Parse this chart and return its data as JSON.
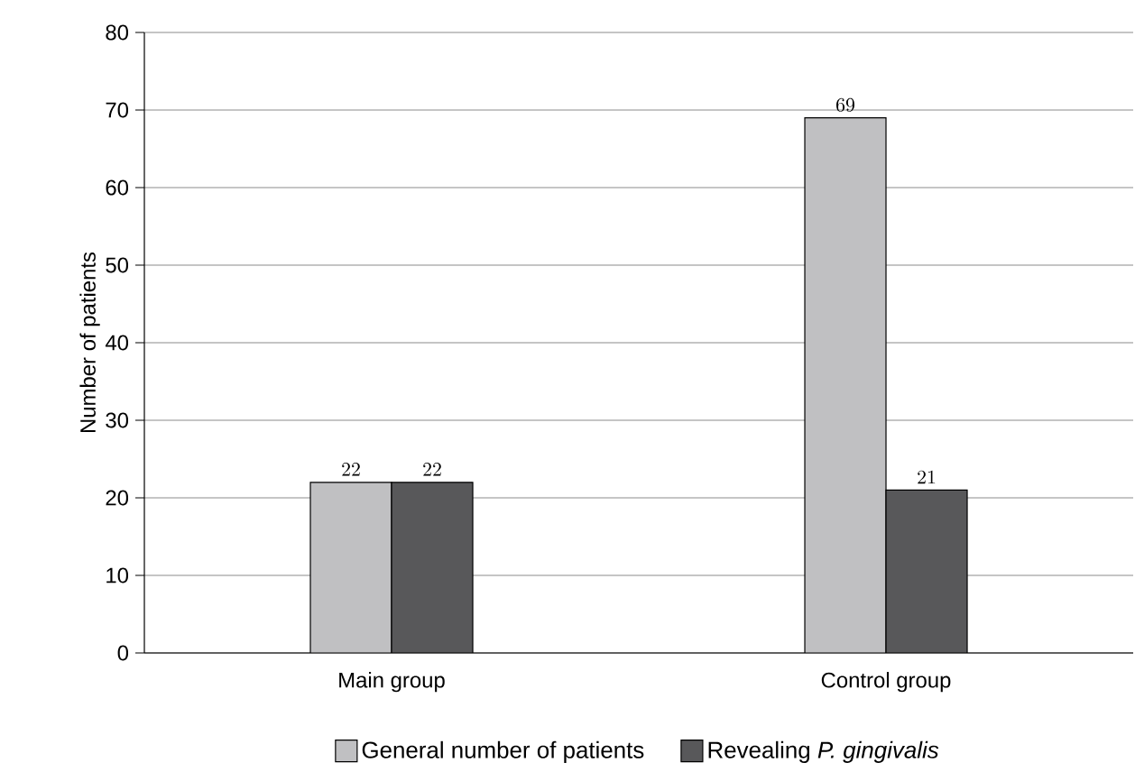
{
  "chart_data": {
    "type": "bar",
    "ylabel": "Number of patients",
    "categories": [
      "Main group",
      "Control group"
    ],
    "series": [
      {
        "name": "General number of patients",
        "color": "#c0c0c2",
        "values": [
          22,
          69
        ]
      },
      {
        "name": "Revealing *P. gingivalis*",
        "color": "#58585a",
        "values": [
          22,
          21
        ]
      }
    ],
    "ylim": [
      0,
      80
    ],
    "yticks": [
      0,
      10,
      20,
      30,
      40,
      50,
      60,
      70,
      80
    ],
    "grid": "y",
    "legend": "bottom",
    "data_labels": true
  }
}
